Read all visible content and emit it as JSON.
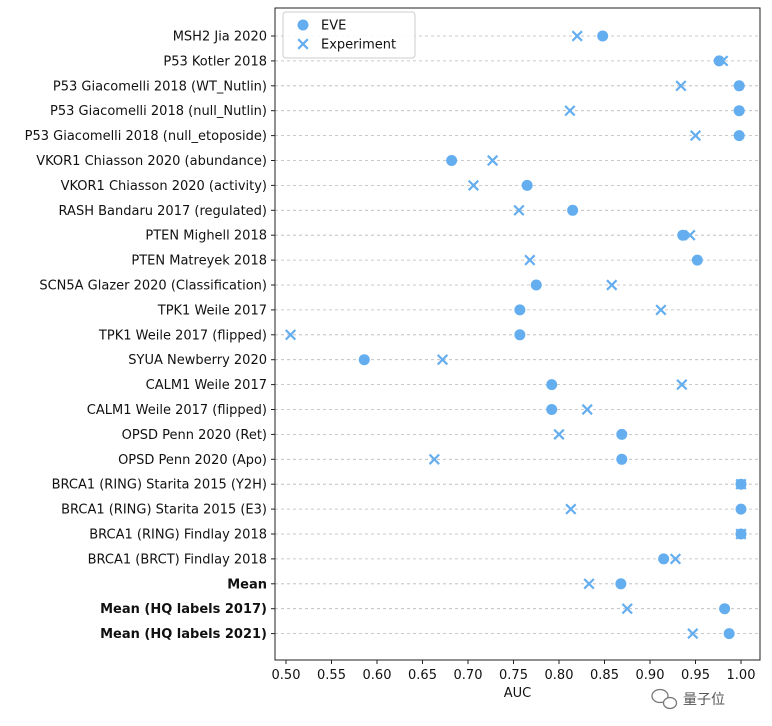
{
  "chart_data": {
    "type": "scatter",
    "xlabel": "AUC",
    "xlim": [
      0.5,
      1.0
    ],
    "xticks": [
      "0.50",
      "0.55",
      "0.60",
      "0.65",
      "0.70",
      "0.75",
      "0.80",
      "0.85",
      "0.90",
      "0.95",
      "1.00"
    ],
    "grid": "horizontal-dashed",
    "legend_position": "top-left",
    "categories": [
      "MSH2 Jia 2020",
      "P53 Kotler 2018",
      "P53 Giacomelli 2018 (WT_Nutlin)",
      "P53 Giacomelli 2018 (null_Nutlin)",
      "P53 Giacomelli 2018 (null_etoposide)",
      "VKOR1 Chiasson 2020 (abundance)",
      "VKOR1 Chiasson 2020 (activity)",
      "RASH Bandaru 2017 (regulated)",
      "PTEN Mighell 2018",
      "PTEN Matreyek 2018",
      "SCN5A Glazer 2020 (Classification)",
      "TPK1 Weile 2017",
      "TPK1 Weile 2017 (flipped)",
      "SYUA Newberry 2020",
      "CALM1 Weile 2017",
      "CALM1 Weile 2017 (flipped)",
      "OPSD Penn 2020 (Ret)",
      "OPSD Penn 2020 (Apo)",
      "BRCA1 (RING) Starita 2015 (Y2H)",
      "BRCA1 (RING) Starita 2015 (E3)",
      "BRCA1 (RING) Findlay 2018",
      "BRCA1 (BRCT) Findlay 2018",
      "Mean",
      "Mean (HQ labels 2017)",
      "Mean (HQ labels 2021)"
    ],
    "bold_categories": [
      "Mean",
      "Mean (HQ labels 2017)",
      "Mean (HQ labels 2021)"
    ],
    "series": [
      {
        "name": "EVE",
        "marker": "circle",
        "color": "#64aef0",
        "values": [
          0.848,
          0.976,
          0.998,
          0.998,
          0.998,
          0.682,
          0.765,
          0.815,
          0.936,
          0.952,
          0.775,
          0.757,
          0.757,
          0.586,
          0.792,
          0.792,
          0.869,
          0.869,
          1.0,
          1.0,
          1.0,
          0.915,
          0.868,
          0.982,
          0.987
        ]
      },
      {
        "name": "Experiment",
        "marker": "x",
        "color": "#64aef0",
        "values": [
          0.82,
          0.98,
          0.934,
          0.812,
          0.95,
          0.727,
          0.706,
          0.756,
          0.944,
          0.768,
          0.858,
          0.912,
          0.505,
          0.672,
          0.935,
          0.831,
          0.8,
          0.663,
          1.0,
          0.813,
          1.0,
          0.928,
          0.833,
          0.875,
          0.947
        ]
      }
    ]
  },
  "watermark": {
    "text": "量子位",
    "icon": "wechat-icon"
  }
}
